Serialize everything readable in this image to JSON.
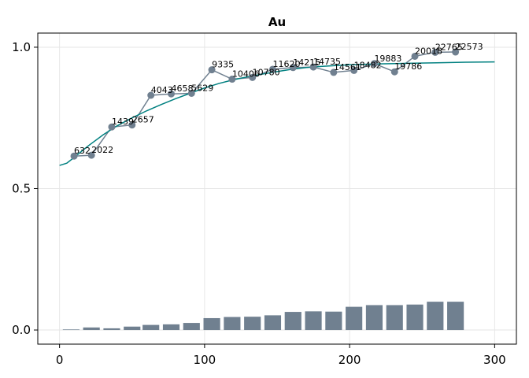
{
  "chart_data": {
    "type": "line",
    "title": "Au",
    "xlabel": "",
    "ylabel": "",
    "xlim": [
      -15,
      315
    ],
    "ylim": [
      -0.05,
      1.05
    ],
    "x_ticks": [
      0,
      100,
      200,
      300
    ],
    "y_ticks": [
      0.0,
      0.5,
      1.0
    ],
    "x_tick_labels": [
      "0",
      "100",
      "200",
      "300"
    ],
    "y_tick_labels": [
      "0.0",
      "0.5",
      "1.0"
    ],
    "grid": true,
    "colors": {
      "points": "#708090",
      "bars": "#708090",
      "fit": "#008080",
      "grid": "#e6e6e6",
      "frame": "#000000"
    },
    "series": [
      {
        "type": "scatter-line",
        "x": [
          10,
          22,
          36,
          50,
          63,
          77,
          91,
          105,
          119,
          133,
          147,
          161,
          175,
          189,
          203,
          217,
          231,
          245,
          259,
          273
        ],
        "y": [
          0.615,
          0.618,
          0.718,
          0.725,
          0.83,
          0.835,
          0.837,
          0.92,
          0.887,
          0.893,
          0.922,
          0.928,
          0.93,
          0.911,
          0.918,
          0.942,
          0.913,
          0.968,
          0.982,
          0.983
        ],
        "labels": [
          "632",
          "2022",
          "1439",
          "2657",
          "4043",
          "4658",
          "5629",
          "9335",
          "10406",
          "10780",
          "11620",
          "14215",
          "14735",
          "14561",
          "18482",
          "19883",
          "19786",
          "20018",
          "22765",
          "22573"
        ]
      },
      {
        "type": "bar",
        "x": [
          8,
          22,
          36,
          50,
          63,
          77,
          91,
          105,
          119,
          133,
          147,
          161,
          175,
          189,
          203,
          217,
          231,
          245,
          259,
          273
        ],
        "values": [
          0.002,
          0.009,
          0.006,
          0.012,
          0.018,
          0.02,
          0.025,
          0.042,
          0.046,
          0.047,
          0.052,
          0.064,
          0.066,
          0.065,
          0.082,
          0.088,
          0.088,
          0.09,
          0.1,
          0.1
        ]
      },
      {
        "type": "line",
        "x": [
          0,
          5,
          10,
          20,
          30,
          40,
          50,
          60,
          70,
          80,
          90,
          100,
          110,
          120,
          130,
          140,
          150,
          160,
          170,
          180,
          200,
          220,
          240,
          260,
          280,
          300
        ],
        "y": [
          0.582,
          0.59,
          0.61,
          0.652,
          0.69,
          0.723,
          0.75,
          0.775,
          0.797,
          0.818,
          0.837,
          0.856,
          0.872,
          0.885,
          0.896,
          0.905,
          0.914,
          0.922,
          0.928,
          0.932,
          0.938,
          0.941,
          0.943,
          0.945,
          0.947,
          0.948
        ]
      }
    ]
  }
}
